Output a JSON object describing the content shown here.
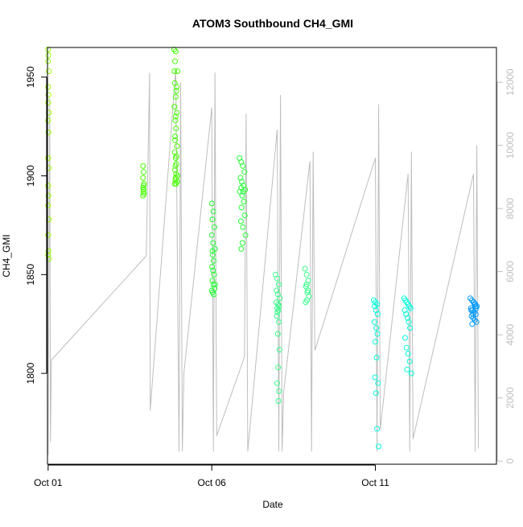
{
  "chart_data": {
    "type": "scatter",
    "title": "ATOM3 Southbound CH4_GMI",
    "xlabel": "Date",
    "ylabel": "CH4_GMI",
    "x_ticks": [
      {
        "day": 1,
        "label": "Oct 01"
      },
      {
        "day": 6,
        "label": "Oct 06"
      },
      {
        "day": 11,
        "label": "Oct 11"
      }
    ],
    "xlim_days": [
      0.98,
      14.7
    ],
    "y_left": {
      "lim": [
        1754,
        1965
      ],
      "ticks": [
        1800,
        1850,
        1900,
        1950
      ]
    },
    "y_right": {
      "lim": [
        -100,
        13100
      ],
      "ticks": [
        0,
        2000,
        4000,
        6000,
        8000,
        10000,
        12000
      ],
      "color": "#bebebe"
    },
    "grid": false,
    "legend": "none",
    "colors": {
      "altitude_line": "#bebebe",
      "plot_box": "#000000"
    },
    "altitude_series": {
      "name": "",
      "axis": "right",
      "points": [
        [
          1.0,
          200
        ],
        [
          1.02,
          4500
        ],
        [
          1.05,
          11500
        ],
        [
          1.07,
          600
        ],
        [
          1.1,
          3200
        ],
        [
          4.0,
          6500
        ],
        [
          4.1,
          12300
        ],
        [
          4.12,
          1600
        ],
        [
          4.9,
          12400
        ],
        [
          5.0,
          300
        ],
        [
          5.05,
          12000
        ],
        [
          5.1,
          300
        ],
        [
          5.15,
          2800
        ],
        [
          6.0,
          11200
        ],
        [
          6.05,
          300
        ],
        [
          6.1,
          12300
        ],
        [
          6.15,
          800
        ],
        [
          7.0,
          3300
        ],
        [
          7.05,
          11000
        ],
        [
          7.1,
          300
        ],
        [
          8.0,
          10500
        ],
        [
          8.05,
          300
        ],
        [
          8.1,
          11600
        ],
        [
          8.15,
          300
        ],
        [
          8.2,
          2200
        ],
        [
          9.0,
          9500
        ],
        [
          9.05,
          300
        ],
        [
          9.1,
          9800
        ],
        [
          9.15,
          3500
        ],
        [
          11.0,
          9600
        ],
        [
          11.05,
          300
        ],
        [
          11.1,
          11300
        ],
        [
          11.15,
          1000
        ],
        [
          12.0,
          9100
        ],
        [
          12.05,
          300
        ],
        [
          12.1,
          9800
        ],
        [
          12.15,
          700
        ],
        [
          14.0,
          9100
        ],
        [
          14.05,
          300
        ],
        [
          14.1,
          10000
        ],
        [
          14.15,
          400
        ]
      ]
    },
    "series": [
      {
        "name": "",
        "color": "#99ff00",
        "x": [
          1.0,
          1.01,
          1.0,
          1.02,
          1.0,
          1.01,
          1.0,
          1.02,
          1.0,
          1.01,
          1.0,
          1.02,
          1.0,
          1.01,
          1.0,
          1.02,
          1.0,
          1.01,
          1.0,
          1.02
        ],
        "y": [
          1964,
          1961,
          1958,
          1953,
          1945,
          1941,
          1937,
          1932,
          1928,
          1922,
          1909,
          1904,
          1895,
          1890,
          1885,
          1878,
          1870,
          1862,
          1860,
          1858
        ]
      },
      {
        "name": "",
        "color": "#44ff00",
        "x": [
          3.9,
          3.92,
          3.9,
          3.93,
          3.9,
          3.92,
          3.91,
          3.93,
          3.9,
          3.92,
          4.85,
          4.9,
          4.88,
          4.95,
          4.87,
          4.92,
          4.9,
          4.86,
          4.93,
          4.89,
          4.91,
          4.88,
          4.94,
          4.87,
          4.9,
          4.92,
          4.88,
          4.95,
          4.89,
          4.91,
          4.86,
          4.93,
          4.9,
          4.88,
          4.92,
          4.89,
          4.91,
          4.94,
          4.87,
          4.9
        ],
        "y": [
          1905,
          1902,
          1899,
          1896,
          1894,
          1893,
          1892,
          1891,
          1890,
          1895,
          1964,
          1963,
          1958,
          1953,
          1947,
          1943,
          1940,
          1935,
          1932,
          1928,
          1924,
          1920,
          1915,
          1912,
          1909,
          1906,
          1903,
          1900,
          1898,
          1896,
          1953,
          1945,
          1930,
          1918,
          1910,
          1905,
          1901,
          1897,
          1896,
          1899
        ]
      },
      {
        "name": "",
        "color": "#22ff33",
        "x": [
          6.0,
          6.05,
          6.02,
          6.08,
          6.0,
          6.04,
          6.1,
          6.03,
          6.06,
          6.01,
          6.07,
          6.02,
          6.05,
          6.09,
          6.0,
          6.03,
          6.06,
          6.1,
          6.04,
          6.02,
          6.85,
          6.9,
          6.95,
          7.0,
          6.88,
          6.92,
          6.97,
          6.9,
          7.02,
          6.86,
          6.93,
          6.98,
          6.91,
          7.01,
          6.89,
          6.95,
          7.03,
          6.94,
          6.9,
          6.96
        ],
        "y": [
          1886,
          1882,
          1878,
          1874,
          1870,
          1866,
          1863,
          1860,
          1857,
          1854,
          1850,
          1847,
          1845,
          1843,
          1842,
          1841,
          1840,
          1845,
          1852,
          1862,
          1909,
          1907,
          1905,
          1902,
          1899,
          1897,
          1895,
          1894,
          1893,
          1892,
          1890,
          1887,
          1884,
          1880,
          1877,
          1874,
          1870,
          1866,
          1863,
          1892
        ]
      },
      {
        "name": "",
        "color": "#33ff88",
        "x": [
          7.95,
          8.0,
          8.05,
          7.98,
          8.02,
          8.08,
          7.97,
          8.03,
          8.06,
          8.0,
          8.04,
          8.01,
          7.99,
          8.05,
          8.02,
          8.07,
          8.03,
          8.0,
          8.06,
          8.04,
          8.85,
          8.9,
          8.95,
          8.88,
          8.92,
          8.97,
          8.91,
          8.87,
          8.94,
          8.9
        ],
        "y": [
          1850,
          1848,
          1845,
          1842,
          1840,
          1838,
          1836,
          1835,
          1834,
          1833,
          1832,
          1831,
          1829,
          1826,
          1820,
          1812,
          1803,
          1795,
          1791,
          1786,
          1853,
          1850,
          1847,
          1844,
          1841,
          1839,
          1837,
          1836,
          1842,
          1845
        ]
      },
      {
        "name": "",
        "color": "#00ffdd",
        "x": [
          10.95,
          11.0,
          11.05,
          10.98,
          11.02,
          11.07,
          10.97,
          11.03,
          11.06,
          11.0,
          11.04,
          10.99,
          11.08,
          11.02,
          11.05,
          11.1,
          11.88,
          11.92,
          11.96,
          12.0,
          12.04,
          12.08,
          11.9,
          11.94,
          11.98,
          12.02,
          12.06,
          11.91,
          11.95,
          12.0,
          12.05,
          11.97,
          12.1
        ],
        "y": [
          1837,
          1836,
          1835,
          1834,
          1832,
          1830,
          1826,
          1823,
          1820,
          1816,
          1808,
          1798,
          1795,
          1790,
          1772,
          1763,
          1838,
          1837,
          1836,
          1835,
          1834,
          1833,
          1832,
          1830,
          1828,
          1826,
          1823,
          1818,
          1813,
          1810,
          1806,
          1802,
          1800
        ]
      },
      {
        "name": "",
        "color": "#0099ff",
        "x": [
          13.9,
          13.95,
          14.0,
          14.05,
          14.1,
          13.92,
          13.97,
          14.02,
          14.07,
          13.94,
          13.99,
          14.04,
          14.09,
          13.96,
          14.01,
          14.06,
          13.93,
          13.98,
          14.03,
          14.08
        ],
        "y": [
          1838,
          1837,
          1836,
          1835,
          1834,
          1833,
          1832,
          1831,
          1830,
          1829,
          1828,
          1827,
          1826,
          1825,
          1836,
          1834,
          1832,
          1830,
          1835,
          1833
        ]
      }
    ]
  }
}
